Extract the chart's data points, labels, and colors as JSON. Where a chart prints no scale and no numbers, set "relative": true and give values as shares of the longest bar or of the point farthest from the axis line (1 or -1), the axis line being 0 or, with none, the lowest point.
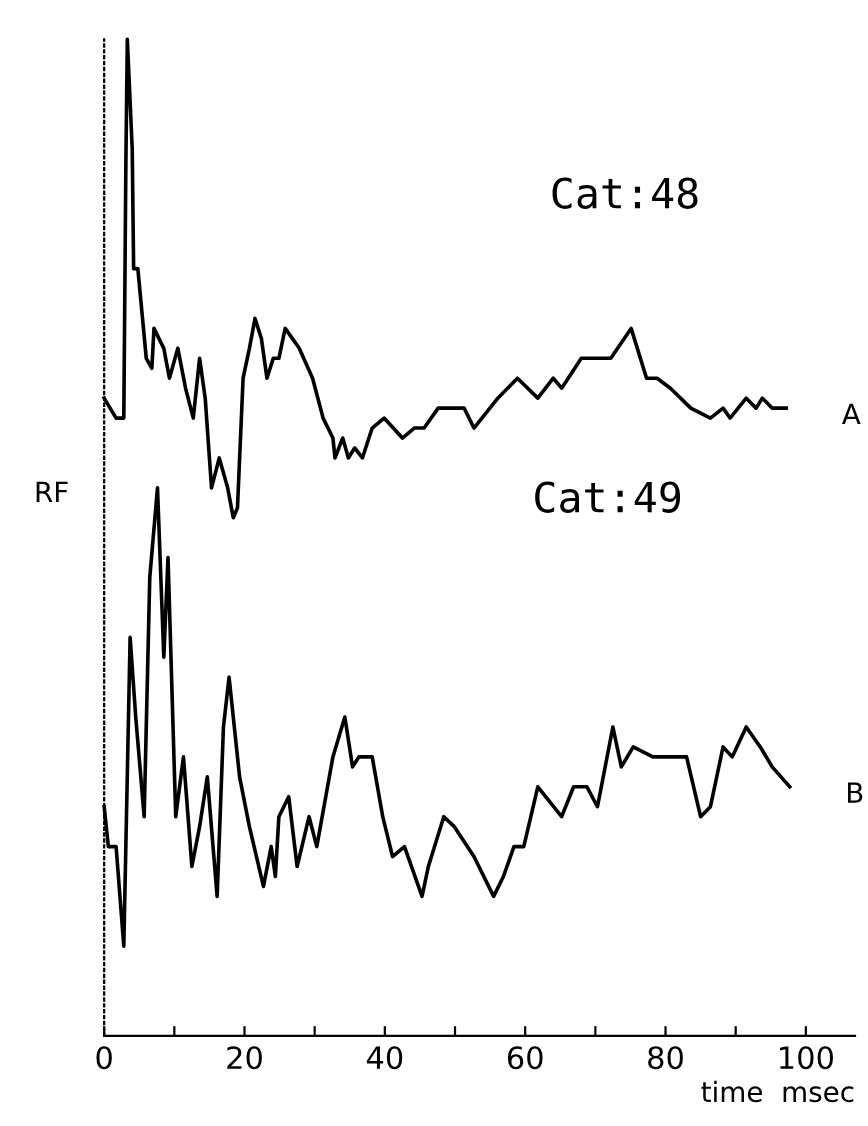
{
  "chart_data": {
    "type": "line",
    "relative": true,
    "ylabel": "RF",
    "xlabel": "time  msec",
    "annotations": [
      "Cat:48",
      "Cat:49"
    ],
    "xlim": [
      0,
      107
    ],
    "xticks": [
      0,
      {
        "value": 10,
        "label": null
      },
      20,
      {
        "value": 30,
        "label": null
      },
      40,
      {
        "value": 50,
        "label": null
      },
      60,
      {
        "value": 70,
        "label": null
      },
      80,
      {
        "value": 90,
        "label": null
      },
      100
    ],
    "legend": false,
    "grid": false,
    "marker": "none",
    "line_style": "solid",
    "series": [
      {
        "name": "A",
        "color": "#000000",
        "x": [
          0,
          1.7,
          2.8,
          3.1,
          3.3,
          4.0,
          4.2,
          4.8,
          6.0,
          6.8,
          7.1,
          8.5,
          9.3,
          10.5,
          11.6,
          12.7,
          13.6,
          14.4,
          15.3,
          16.4,
          17.6,
          18.4,
          19.0,
          19.8,
          20.7,
          21.5,
          22.4,
          23.2,
          24.1,
          24.9,
          25.8,
          27.8,
          29.7,
          31.2,
          32.6,
          32.9,
          34.0,
          34.8,
          35.7,
          36.8,
          38.2,
          39.9,
          42.5,
          44.2,
          45.6,
          47.6,
          51.3,
          52.7,
          56.1,
          58.9,
          61.8,
          64.0,
          65.2,
          68.0,
          72.2,
          75.1,
          77.3,
          78.8,
          80.7,
          83.6,
          86.4,
          88.2,
          89.2,
          91.5,
          92.9,
          93.8,
          95.2,
          96.6,
          97.2
        ],
        "values": [
          0.64,
          0.62,
          0.62,
          0.88,
          1.0,
          0.89,
          0.77,
          0.77,
          0.68,
          0.67,
          0.71,
          0.69,
          0.66,
          0.69,
          0.65,
          0.62,
          0.68,
          0.64,
          0.55,
          0.58,
          0.55,
          0.52,
          0.53,
          0.66,
          0.69,
          0.72,
          0.7,
          0.66,
          0.68,
          0.68,
          0.71,
          0.69,
          0.66,
          0.62,
          0.6,
          0.58,
          0.6,
          0.58,
          0.59,
          0.58,
          0.61,
          0.62,
          0.6,
          0.61,
          0.61,
          0.63,
          0.63,
          0.61,
          0.64,
          0.66,
          0.64,
          0.66,
          0.65,
          0.68,
          0.68,
          0.71,
          0.66,
          0.66,
          0.65,
          0.63,
          0.62,
          0.63,
          0.62,
          0.64,
          0.63,
          0.64,
          0.63,
          0.63,
          0.63
        ]
      },
      {
        "name": "B",
        "color": "#000000",
        "x": [
          0,
          0.6,
          1.7,
          2.8,
          3.7,
          4.5,
          5.7,
          6.5,
          7.6,
          8.5,
          9.1,
          10.2,
          11.3,
          12.5,
          13.6,
          14.7,
          16.1,
          17.0,
          17.8,
          19.3,
          20.7,
          22.7,
          23.8,
          24.4,
          24.9,
          26.3,
          27.5,
          29.2,
          30.3,
          32.6,
          34.3,
          35.4,
          36.3,
          38.2,
          39.7,
          41.1,
          42.8,
          45.3,
          46.2,
          48.4,
          49.9,
          52.7,
          55.5,
          56.9,
          58.4,
          59.8,
          61.8,
          65.2,
          66.9,
          68.8,
          70.3,
          72.5,
          73.7,
          75.4,
          78.2,
          81.6,
          83.0,
          85.0,
          86.4,
          88.2,
          89.5,
          91.5,
          93.5,
          95.2,
          97.7
        ],
        "values": [
          0.23,
          0.19,
          0.19,
          0.09,
          0.4,
          0.32,
          0.22,
          0.46,
          0.55,
          0.38,
          0.48,
          0.22,
          0.28,
          0.17,
          0.21,
          0.26,
          0.14,
          0.31,
          0.36,
          0.26,
          0.21,
          0.15,
          0.19,
          0.16,
          0.22,
          0.24,
          0.17,
          0.22,
          0.19,
          0.28,
          0.32,
          0.27,
          0.28,
          0.28,
          0.22,
          0.18,
          0.19,
          0.14,
          0.17,
          0.22,
          0.21,
          0.18,
          0.14,
          0.16,
          0.19,
          0.19,
          0.25,
          0.22,
          0.25,
          0.25,
          0.23,
          0.31,
          0.27,
          0.29,
          0.28,
          0.28,
          0.28,
          0.22,
          0.23,
          0.29,
          0.28,
          0.31,
          0.29,
          0.27,
          0.25
        ]
      }
    ]
  }
}
